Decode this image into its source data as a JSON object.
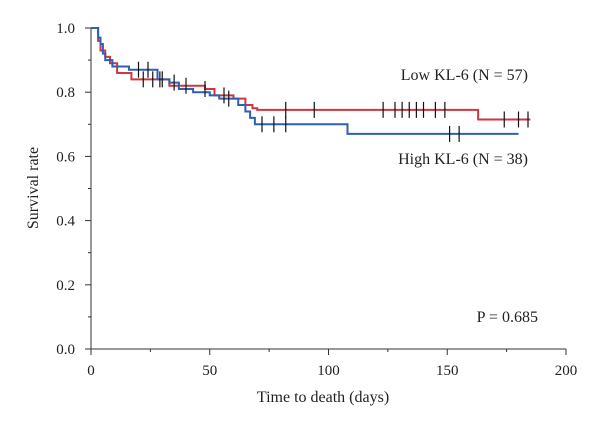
{
  "chart_data": {
    "type": "line",
    "title": "",
    "xlabel": "Time to death (days)",
    "ylabel": "Survival rate",
    "xlim": [
      0,
      200
    ],
    "ylim": [
      0,
      1.0
    ],
    "xticks": [
      0,
      50,
      100,
      150,
      200
    ],
    "yticks": [
      0.0,
      0.2,
      0.4,
      0.6,
      0.8,
      1.0
    ],
    "xtick_labels": [
      "0",
      "50",
      "100",
      "150",
      "200"
    ],
    "ytick_labels": [
      "0.0",
      "0.2",
      "0.4",
      "0.6",
      "0.8",
      "1.0"
    ],
    "grid": false,
    "annotation": "P = 0.685",
    "series": [
      {
        "name": "Low KL-6 (N = 57)",
        "color": "#d0363f",
        "x": [
          0,
          3,
          4,
          6,
          8,
          11,
          17,
          26,
          33,
          48,
          52,
          60,
          65,
          68,
          70,
          163,
          185
        ],
        "y": [
          1.0,
          0.96,
          0.93,
          0.91,
          0.89,
          0.86,
          0.84,
          0.84,
          0.82,
          0.81,
          0.79,
          0.78,
          0.76,
          0.75,
          0.745,
          0.715,
          0.715
        ],
        "censor_x": [
          22,
          26,
          29,
          40,
          48,
          56,
          82,
          94,
          123,
          128,
          131,
          134,
          137,
          140,
          145,
          149,
          174,
          180,
          184
        ],
        "censor_y": [
          0.84,
          0.84,
          0.84,
          0.82,
          0.81,
          0.79,
          0.745,
          0.745,
          0.745,
          0.745,
          0.745,
          0.745,
          0.745,
          0.745,
          0.745,
          0.745,
          0.715,
          0.715,
          0.715
        ]
      },
      {
        "name": "High KL-6 (N = 38)",
        "color": "#2e5fb0",
        "x": [
          0,
          3,
          4,
          5,
          6,
          9,
          12,
          16,
          28,
          33,
          37,
          43,
          50,
          54,
          62,
          65,
          67,
          69,
          108,
          180
        ],
        "y": [
          1.0,
          0.97,
          0.95,
          0.92,
          0.9,
          0.88,
          0.88,
          0.87,
          0.84,
          0.83,
          0.81,
          0.8,
          0.79,
          0.78,
          0.76,
          0.74,
          0.72,
          0.7,
          0.67,
          0.67
        ],
        "censor_x": [
          20,
          24,
          30,
          35,
          58,
          72,
          77,
          82,
          151,
          155
        ],
        "censor_y": [
          0.87,
          0.87,
          0.84,
          0.83,
          0.78,
          0.7,
          0.7,
          0.7,
          0.67,
          0.67
        ]
      }
    ]
  }
}
